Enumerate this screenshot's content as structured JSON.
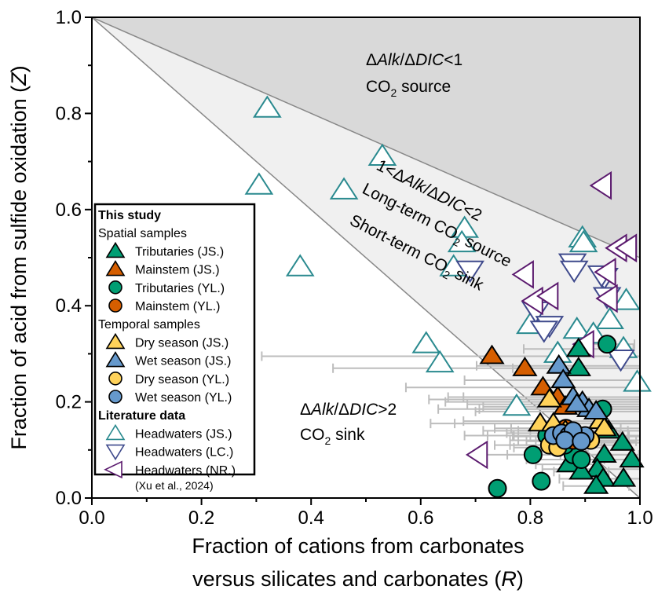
{
  "chart_data": {
    "type": "scatter",
    "xlabel_line1": "Fraction of cations from carbonates",
    "xlabel_line2_prefix": "versus silicates and carbonates (",
    "xlabel_var": "R",
    "xlabel_suffix": ")",
    "ylabel_prefix": "Fraction of acid from sulfide oxidation (",
    "ylabel_var": "Z",
    "ylabel_suffix": ")",
    "xlim": [
      0,
      1
    ],
    "ylim": [
      0,
      1
    ],
    "xticks": [
      "0.0",
      "0.2",
      "0.4",
      "0.6",
      "0.8",
      "1.0"
    ],
    "yticks": [
      "0.0",
      "0.2",
      "0.4",
      "0.6",
      "0.8",
      "1.0"
    ],
    "grid": false,
    "legend_placement": "lower-left",
    "regions": [
      {
        "name": "source",
        "label_parts": [
          "Δ",
          "Alk",
          "/Δ",
          "DIC",
          "<1"
        ],
        "label2": "CO",
        "label2_sub": "2",
        "label2_rest": " source",
        "color": "#d9d9d9"
      },
      {
        "name": "mid",
        "label_parts": [
          "1<Δ",
          "Alk",
          "/Δ",
          "DIC",
          "<2"
        ],
        "label2": "Long-term CO",
        "label2_sub": "2",
        "label2_rest": " source",
        "label3": "Short-term CO",
        "label3_sub": "2",
        "label3_rest": " sink",
        "color": "#f0f0f0"
      },
      {
        "name": "sink",
        "label_parts": [
          "Δ",
          "Alk",
          "/Δ",
          "DIC",
          ">2"
        ],
        "label2": "CO",
        "label2_sub": "2",
        "label2_rest": " sink",
        "color": "#ffffff"
      }
    ],
    "boundary_lines": [
      {
        "equation": "Z = 1 - R/2"
      },
      {
        "equation": "Z = 1 - R"
      }
    ],
    "legend": {
      "group1": "This study",
      "sub1": "Spatial samples",
      "sub2": "Temporal samples",
      "group2": "Literature data",
      "citation": "(Xu et al., 2024)"
    },
    "series": [
      {
        "name": "Headwaters (JS.)",
        "marker": "tri-up",
        "filled": false,
        "color": "#2A8A8F",
        "points": [
          [
            0.32,
            0.81
          ],
          [
            0.305,
            0.65
          ],
          [
            0.38,
            0.48
          ],
          [
            0.46,
            0.64
          ],
          [
            0.53,
            0.71
          ],
          [
            0.68,
            0.56
          ],
          [
            0.675,
            0.53
          ],
          [
            0.66,
            0.48
          ],
          [
            0.61,
            0.32
          ],
          [
            0.635,
            0.28
          ],
          [
            0.8,
            0.36
          ],
          [
            0.895,
            0.54
          ],
          [
            0.897,
            0.53
          ],
          [
            0.885,
            0.35
          ],
          [
            0.975,
            0.41
          ],
          [
            0.945,
            0.37
          ],
          [
            0.995,
            0.24
          ],
          [
            0.775,
            0.19
          ],
          [
            0.85,
            0.3
          ],
          [
            0.915,
            0.34
          ],
          [
            0.97,
            0.31
          ]
        ]
      },
      {
        "name": "Headwaters (LC.)",
        "marker": "tri-down",
        "filled": false,
        "color": "#3F4A8C",
        "points": [
          [
            0.69,
            0.475
          ],
          [
            0.81,
            0.39
          ],
          [
            0.835,
            0.36
          ],
          [
            0.825,
            0.35
          ],
          [
            0.877,
            0.49
          ],
          [
            0.88,
            0.475
          ],
          [
            0.935,
            0.46
          ],
          [
            0.94,
            0.42
          ],
          [
            0.965,
            0.29
          ],
          [
            0.93,
            0.465
          ]
        ]
      },
      {
        "name": "Headwaters (NR.)",
        "marker": "tri-left",
        "filled": false,
        "color": "#5B1A6E",
        "points": [
          [
            0.932,
            0.65
          ],
          [
            0.79,
            0.465
          ],
          [
            0.807,
            0.41
          ],
          [
            0.835,
            0.42
          ],
          [
            0.94,
            0.47
          ],
          [
            0.96,
            0.52
          ],
          [
            0.978,
            0.52
          ],
          [
            0.943,
            0.415
          ],
          [
            0.706,
            0.09
          ],
          [
            0.9,
            0.32
          ]
        ]
      },
      {
        "name": "Mainstem (JS.)",
        "marker": "tri-up",
        "filled": true,
        "color": "#D55E00",
        "points": [
          [
            0.73,
            0.295,
            0.42
          ],
          [
            0.79,
            0.27,
            0.35
          ],
          [
            0.823,
            0.23,
            0.25
          ],
          [
            0.85,
            0.21,
            0.2
          ],
          [
            0.864,
            0.19,
            0.15
          ]
        ]
      },
      {
        "name": "Tributaries (JS.)",
        "marker": "tri-up",
        "filled": true,
        "color": "#009E73",
        "points": [
          [
            0.888,
            0.31,
            0.1
          ],
          [
            0.888,
            0.27,
            0.12
          ],
          [
            0.943,
            0.14,
            0.12
          ],
          [
            0.968,
            0.115,
            0.1
          ],
          [
            0.935,
            0.09,
            0.08
          ],
          [
            0.985,
            0.08,
            0.05
          ],
          [
            0.922,
            0.06,
            0.1
          ],
          [
            0.933,
            0.04,
            0.08
          ],
          [
            0.97,
            0.04,
            0.05
          ],
          [
            0.92,
            0.025,
            0.06
          ],
          [
            0.87,
            0.07,
            0.06
          ],
          [
            0.893,
            0.055,
            0.05
          ]
        ]
      },
      {
        "name": "Tributaries (YL.)",
        "marker": "circle",
        "filled": true,
        "color": "#009E73",
        "points": [
          [
            0.94,
            0.32,
            0.05
          ],
          [
            0.74,
            0.02,
            0
          ],
          [
            0.82,
            0.035,
            0
          ],
          [
            0.805,
            0.09,
            0.1
          ],
          [
            0.932,
            0.185,
            0.3
          ],
          [
            0.83,
            0.13,
            0.15
          ],
          [
            0.878,
            0.09,
            0.12
          ],
          [
            0.893,
            0.08,
            0.1
          ],
          [
            0.863,
            0.11,
            0.1
          ]
        ]
      },
      {
        "name": "Mainstem (YL.)",
        "marker": "circle",
        "filled": true,
        "color": "#D55E00",
        "points": [
          [
            0.865,
            0.145,
            0.1
          ],
          [
            0.878,
            0.12,
            0.1
          ]
        ]
      },
      {
        "name": "Dry season (JS.)",
        "marker": "tri-up",
        "filled": true,
        "color": "#FFD25A",
        "points": [
          [
            0.835,
            0.205,
            0.22
          ],
          [
            0.818,
            0.155,
            0.2
          ],
          [
            0.842,
            0.155,
            0.18
          ],
          [
            0.864,
            0.14,
            0.15
          ],
          [
            0.928,
            0.16,
            0.25
          ],
          [
            0.935,
            0.145,
            0.2
          ]
        ]
      },
      {
        "name": "Wet season (JS.)",
        "marker": "tri-up",
        "filled": true,
        "color": "#6699CC",
        "points": [
          [
            0.852,
            0.275,
            0.15
          ],
          [
            0.86,
            0.245,
            0.18
          ],
          [
            0.878,
            0.21,
            0.2
          ],
          [
            0.895,
            0.2,
            0.25
          ],
          [
            0.907,
            0.185,
            0.2
          ],
          [
            0.885,
            0.195,
            0.2
          ],
          [
            0.92,
            0.18,
            0.22
          ]
        ]
      },
      {
        "name": "Dry season (YL.)",
        "marker": "circle",
        "filled": true,
        "color": "#FFD25A",
        "points": [
          [
            0.835,
            0.11,
            0.1
          ],
          [
            0.85,
            0.105,
            0.08
          ],
          [
            0.91,
            0.12,
            0.1
          ]
        ]
      },
      {
        "name": "Wet season (YL.)",
        "marker": "circle",
        "filled": true,
        "color": "#6699CC",
        "points": [
          [
            0.842,
            0.13,
            0.12
          ],
          [
            0.857,
            0.135,
            0.1
          ],
          [
            0.87,
            0.13,
            0.1
          ],
          [
            0.888,
            0.128,
            0.12
          ],
          [
            0.9,
            0.13,
            0.1
          ],
          [
            0.878,
            0.14,
            0.1
          ],
          [
            0.863,
            0.12,
            0.1
          ],
          [
            0.893,
            0.118,
            0.1
          ]
        ]
      }
    ],
    "legend_order": [
      4,
      3,
      5,
      6,
      7,
      8,
      9,
      10,
      0,
      1,
      2
    ]
  }
}
